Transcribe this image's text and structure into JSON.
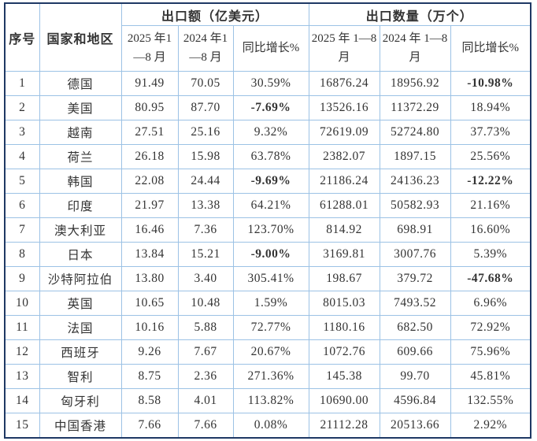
{
  "colors": {
    "outer_border": "#1f3864",
    "grid_line": "#9cc2e5",
    "text": "#333333",
    "negative": "#fe0000",
    "background": "#ffffff"
  },
  "header": {
    "seq": "序号",
    "country": "国家和地区",
    "group_value": "出口额（亿美元）",
    "group_qty": "出口数量（万个）",
    "value_2025": "2025 年1—8 月",
    "value_2024": "2024 年1—8 月",
    "value_growth": "同比增长%",
    "qty_2025": "2025 年 1—8 月",
    "qty_2024": "2024 年 1—8 月",
    "qty_growth": "同比增长%"
  },
  "rows": [
    {
      "seq": "1",
      "country": "德国",
      "v2025": "91.49",
      "v2024": "70.05",
      "vg": "30.59%",
      "q2025": "16876.24",
      "q2024": "18956.92",
      "qg": "-10.98%"
    },
    {
      "seq": "2",
      "country": "美国",
      "v2025": "80.95",
      "v2024": "87.70",
      "vg": "-7.69%",
      "q2025": "13526.16",
      "q2024": "11372.29",
      "qg": "18.94%"
    },
    {
      "seq": "3",
      "country": "越南",
      "v2025": "27.51",
      "v2024": "25.16",
      "vg": "9.32%",
      "q2025": "72619.09",
      "q2024": "52724.80",
      "qg": "37.73%"
    },
    {
      "seq": "4",
      "country": "荷兰",
      "v2025": "26.18",
      "v2024": "15.98",
      "vg": "63.78%",
      "q2025": "2382.07",
      "q2024": "1897.15",
      "qg": "25.56%"
    },
    {
      "seq": "5",
      "country": "韩国",
      "v2025": "22.08",
      "v2024": "24.44",
      "vg": "-9.69%",
      "q2025": "21186.24",
      "q2024": "24136.23",
      "qg": "-12.22%"
    },
    {
      "seq": "6",
      "country": "印度",
      "v2025": "21.97",
      "v2024": "13.38",
      "vg": "64.21%",
      "q2025": "61288.01",
      "q2024": "50582.93",
      "qg": "21.16%"
    },
    {
      "seq": "7",
      "country": "澳大利亚",
      "v2025": "16.46",
      "v2024": "7.36",
      "vg": "123.70%",
      "q2025": "814.92",
      "q2024": "698.91",
      "qg": "16.60%"
    },
    {
      "seq": "8",
      "country": "日本",
      "v2025": "13.84",
      "v2024": "15.21",
      "vg": "-9.00%",
      "q2025": "3169.81",
      "q2024": "3007.76",
      "qg": "5.39%"
    },
    {
      "seq": "9",
      "country": "沙特阿拉伯",
      "v2025": "13.80",
      "v2024": "3.40",
      "vg": "305.41%",
      "q2025": "198.67",
      "q2024": "379.72",
      "qg": "-47.68%"
    },
    {
      "seq": "10",
      "country": "英国",
      "v2025": "10.65",
      "v2024": "10.48",
      "vg": "1.59%",
      "q2025": "8015.03",
      "q2024": "7493.52",
      "qg": "6.96%"
    },
    {
      "seq": "11",
      "country": "法国",
      "v2025": "10.16",
      "v2024": "5.88",
      "vg": "72.77%",
      "q2025": "1180.16",
      "q2024": "682.50",
      "qg": "72.92%"
    },
    {
      "seq": "12",
      "country": "西班牙",
      "v2025": "9.26",
      "v2024": "7.67",
      "vg": "20.67%",
      "q2025": "1072.76",
      "q2024": "609.66",
      "qg": "75.96%"
    },
    {
      "seq": "13",
      "country": "智利",
      "v2025": "8.75",
      "v2024": "2.36",
      "vg": "271.36%",
      "q2025": "145.38",
      "q2024": "99.70",
      "qg": "45.81%"
    },
    {
      "seq": "14",
      "country": "匈牙利",
      "v2025": "8.58",
      "v2024": "4.01",
      "vg": "113.82%",
      "q2025": "10690.00",
      "q2024": "4596.84",
      "qg": "132.55%"
    },
    {
      "seq": "15",
      "country": "中国香港",
      "v2025": "7.66",
      "v2024": "7.66",
      "vg": "0.08%",
      "q2025": "21112.28",
      "q2024": "20513.66",
      "qg": "2.92%"
    }
  ]
}
